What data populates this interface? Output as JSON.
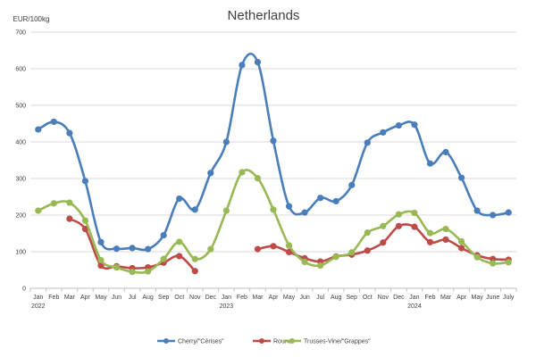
{
  "chart_data": {
    "type": "line",
    "title": "Netherlands",
    "ylabel": "EUR/100kg",
    "ylim": [
      0,
      700
    ],
    "yticks": [
      0,
      100,
      200,
      300,
      400,
      500,
      600,
      700
    ],
    "grid": true,
    "legend_position": "bottom",
    "x": [
      "Jan",
      "Feb",
      "Mar",
      "Apr",
      "May",
      "Jun",
      "Jul",
      "Aug",
      "Sep",
      "Oct",
      "Nov",
      "Dec",
      "Jan",
      "Feb",
      "Mar",
      "Apr",
      "May",
      "Jun",
      "Jul",
      "Aug",
      "Sep",
      "Oct",
      "Nov",
      "Dec",
      "Jan",
      "Feb",
      "Mar",
      "Apr",
      "May",
      "June",
      "July"
    ],
    "year_labels": [
      {
        "index": 0,
        "label": "2022"
      },
      {
        "index": 12,
        "label": "2023"
      },
      {
        "index": 24,
        "label": "2024"
      }
    ],
    "series": [
      {
        "name": "Cherry/\"Cérises\"",
        "color": "#4a7ebb",
        "values": [
          434,
          455,
          424,
          293,
          126,
          108,
          110,
          107,
          145,
          245,
          215,
          315,
          400,
          610,
          618,
          403,
          224,
          207,
          247,
          238,
          282,
          398,
          426,
          445,
          447,
          341,
          372,
          302,
          212,
          200,
          207
        ]
      },
      {
        "name": "Round",
        "color": "#be4b48",
        "values": [
          null,
          null,
          190,
          162,
          62,
          60,
          55,
          57,
          70,
          88,
          47,
          null,
          null,
          null,
          107,
          115,
          99,
          82,
          73,
          87,
          92,
          103,
          125,
          170,
          168,
          126,
          133,
          110,
          90,
          80,
          78
        ]
      },
      {
        "name": "Trusses-Vine/\"Grappes\"",
        "color": "#98b954",
        "values": [
          212,
          232,
          234,
          185,
          77,
          57,
          45,
          46,
          80,
          127,
          80,
          107,
          212,
          317,
          301,
          215,
          117,
          72,
          62,
          86,
          98,
          152,
          170,
          202,
          206,
          151,
          162,
          128,
          85,
          68,
          71
        ]
      }
    ]
  }
}
